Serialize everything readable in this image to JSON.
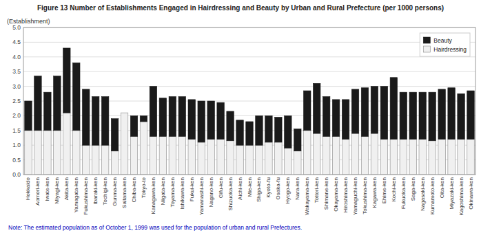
{
  "chart_data": {
    "type": "bar",
    "title": "Figure 13  Number of Establishments Engaged in Hairdressing and Beauty by Urban and Rural Prefecture (per 1000 persons)",
    "y_label": "(Establishment)",
    "note": "Note:  The estimated population as of October 1, 1999 was used for the population of urban and rural Prefectures.",
    "categories": [
      "Hokkaido",
      "Aomori-ken",
      "Iwate-ken",
      "Miyagi-ken",
      "Akita-ken",
      "Yamagata-ken",
      "Fukushima-ken",
      "Ibaraki-ken",
      "Tochigi-ken",
      "Gunma-ken",
      "Saitama-ken",
      "Chiba-ken",
      "Tokyo-to",
      "Kanagawa-ken",
      "Niigata-ken",
      "Toyama-ken",
      "Ishikawa-ken",
      "Fukui-ken",
      "Yamanashi-ken",
      "Nagano-ken",
      "Gifu-ken",
      "Shizuoka-ken",
      "Aichi-ken",
      "Mie-ken",
      "Shiga-ken",
      "Kyoto-fu",
      "Osaka-fu",
      "Hyogo-ken",
      "Nara-ken",
      "Wakayama-ken",
      "Tottori-ken",
      "Shimane-ken",
      "Okayama-ken",
      "Hiroshima-ken",
      "Yamaguchi-ken",
      "Tokushima-ken",
      "Kagawa-ken",
      "Ehime-ken",
      "Kochi-ken",
      "Fukuoka-ken",
      "Saga-ken",
      "Nagasaki-ken",
      "Kumamoto-ken",
      "Oita-ken",
      "Miyazaki-ken",
      "Kagoshima-ken",
      "Okinawa-ken"
    ],
    "series": [
      {
        "name": "Hairdressing",
        "color": "#f0f0f0",
        "values": [
          1.5,
          1.5,
          1.5,
          1.5,
          2.1,
          1.5,
          1.0,
          1.0,
          1.0,
          0.8,
          2.1,
          1.3,
          1.8,
          1.3,
          1.3,
          1.3,
          1.3,
          1.2,
          1.1,
          1.2,
          1.2,
          1.15,
          1.0,
          1.0,
          1.0,
          1.1,
          1.1,
          0.9,
          0.8,
          1.5,
          1.4,
          1.3,
          1.3,
          1.2,
          1.4,
          1.3,
          1.4,
          1.2,
          1.2,
          1.2,
          1.2,
          1.2,
          1.15,
          1.2,
          1.2,
          1.2,
          1.2
        ]
      },
      {
        "name": "Beauty",
        "color": "#1a1a1a",
        "values": [
          1.0,
          1.85,
          1.3,
          1.85,
          2.2,
          2.3,
          1.9,
          1.65,
          1.65,
          1.1,
          0.0,
          0.7,
          0.2,
          1.7,
          1.3,
          1.35,
          1.35,
          1.35,
          1.4,
          1.3,
          1.25,
          1.0,
          0.85,
          0.8,
          1.0,
          0.9,
          0.85,
          1.1,
          0.75,
          1.35,
          1.7,
          1.35,
          1.25,
          1.35,
          1.5,
          1.65,
          1.6,
          1.8,
          2.1,
          1.6,
          1.6,
          1.6,
          1.65,
          1.7,
          1.75,
          1.55,
          1.65
        ]
      }
    ],
    "ylim": [
      0,
      5
    ],
    "yticks": [
      {
        "value": 0,
        "label": "0.0"
      },
      0.5,
      {
        "value": 1,
        "label": "1.0"
      },
      1.5,
      {
        "value": 2,
        "label": "2.0"
      },
      2.5,
      {
        "value": 3,
        "label": "3.0"
      },
      3.5,
      {
        "value": 4,
        "label": "4.0"
      },
      4.5,
      {
        "value": 5,
        "label": "5.0"
      }
    ],
    "stacked": true,
    "grid": true,
    "legend": "upper right"
  }
}
